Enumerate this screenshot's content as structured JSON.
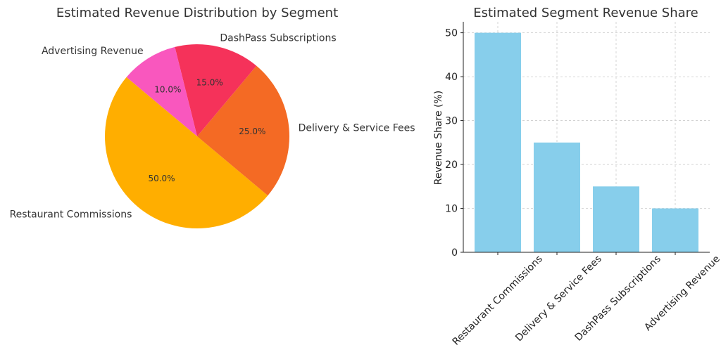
{
  "chart_data": [
    {
      "type": "pie",
      "title": "Estimated Revenue Distribution by Segment",
      "labels": [
        "Restaurant Commissions",
        "Delivery & Service Fees",
        "DashPass Subscriptions",
        "Advertising Revenue"
      ],
      "values": [
        50.0,
        25.0,
        15.0,
        10.0
      ],
      "percent_labels": [
        "50.0%",
        "25.0%",
        "15.0%",
        "10.0%"
      ],
      "colors": [
        "#FFAE00",
        "#F46A24",
        "#F5325A",
        "#F957BE"
      ],
      "start_angle_deg": 140,
      "direction": "counterclockwise"
    },
    {
      "type": "bar",
      "title": "Estimated Segment Revenue Share",
      "categories": [
        "Restaurant Commissions",
        "Delivery & Service Fees",
        "DashPass Subscriptions",
        "Advertising Revenue"
      ],
      "values": [
        50,
        25,
        15,
        10
      ],
      "ylabel": "Revenue Share (%)",
      "xlabel": "",
      "ylim": [
        0,
        52.5
      ],
      "yticks": [
        0,
        10,
        20,
        30,
        40,
        50
      ],
      "grid": true,
      "bar_color": "#87CEEB"
    }
  ]
}
